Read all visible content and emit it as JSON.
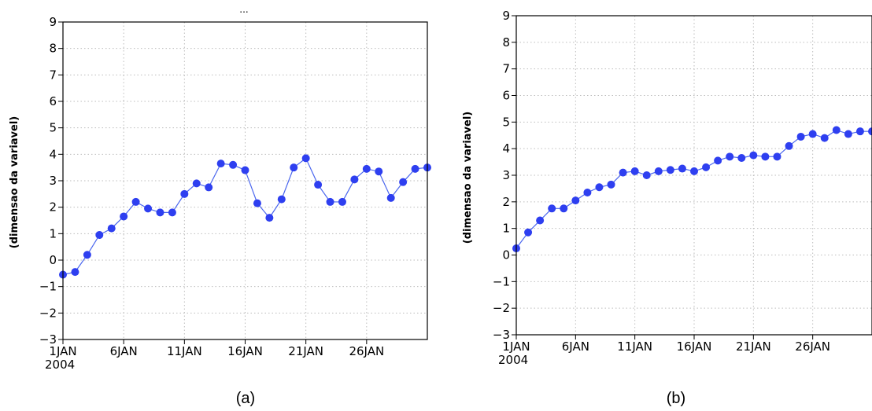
{
  "colors": {
    "series": "#2e3ff0",
    "line": "#4a66ee",
    "grid": "#bdbdbd",
    "axis": "#000000"
  },
  "chart_data": [
    {
      "type": "line",
      "panel_label": "(a)",
      "title_partial": "...",
      "ylabel": "(dimensao da variavel)",
      "xlabel": "",
      "ylim": [
        -3,
        9
      ],
      "yticks": [
        -3,
        -2,
        -1,
        0,
        1,
        2,
        3,
        4,
        5,
        6,
        7,
        8,
        9
      ],
      "xlim": [
        1,
        31
      ],
      "xticks": [
        {
          "x": 1,
          "label": "1JAN",
          "sublabel": "2004"
        },
        {
          "x": 6,
          "label": "6JAN"
        },
        {
          "x": 11,
          "label": "11JAN"
        },
        {
          "x": 16,
          "label": "16JAN"
        },
        {
          "x": 21,
          "label": "21JAN"
        },
        {
          "x": 26,
          "label": "26JAN"
        }
      ],
      "grid": true,
      "marker": "circle",
      "x": [
        1,
        2,
        3,
        4,
        5,
        6,
        7,
        8,
        9,
        10,
        11,
        12,
        13,
        14,
        15,
        16,
        17,
        18,
        19,
        20,
        21,
        22,
        23,
        24,
        25,
        26,
        27,
        28,
        29,
        30,
        31
      ],
      "values": [
        -0.55,
        -0.45,
        0.2,
        0.95,
        1.2,
        1.65,
        2.2,
        1.95,
        1.8,
        1.8,
        2.5,
        2.9,
        2.75,
        3.65,
        3.6,
        3.4,
        2.15,
        1.6,
        2.3,
        3.5,
        3.85,
        2.85,
        2.2,
        2.2,
        3.05,
        3.45,
        3.35,
        2.35,
        2.95,
        3.45,
        3.5
      ]
    },
    {
      "type": "line",
      "panel_label": "(b)",
      "ylabel": "(dimensao da variavel)",
      "xlabel": "",
      "ylim": [
        -3,
        9
      ],
      "yticks": [
        -3,
        -2,
        -1,
        0,
        1,
        2,
        3,
        4,
        5,
        6,
        7,
        8,
        9
      ],
      "xlim": [
        1,
        31
      ],
      "xticks": [
        {
          "x": 1,
          "label": "1JAN",
          "sublabel": "2004"
        },
        {
          "x": 6,
          "label": "6JAN"
        },
        {
          "x": 11,
          "label": "11JAN"
        },
        {
          "x": 16,
          "label": "16JAN"
        },
        {
          "x": 21,
          "label": "21JAN"
        },
        {
          "x": 26,
          "label": "26JAN"
        }
      ],
      "grid": true,
      "marker": "circle",
      "x": [
        1,
        2,
        3,
        4,
        5,
        6,
        7,
        8,
        9,
        10,
        11,
        12,
        13,
        14,
        15,
        16,
        17,
        18,
        19,
        20,
        21,
        22,
        23,
        24,
        25,
        26,
        27,
        28,
        29,
        30,
        31
      ],
      "values": [
        0.25,
        0.85,
        1.3,
        1.75,
        1.75,
        2.05,
        2.35,
        2.55,
        2.65,
        3.1,
        3.15,
        3.0,
        3.15,
        3.2,
        3.25,
        3.15,
        3.3,
        3.55,
        3.7,
        3.65,
        3.75,
        3.7,
        3.7,
        4.1,
        4.45,
        4.55,
        4.4,
        4.7,
        4.55,
        4.65,
        4.65
      ]
    }
  ]
}
